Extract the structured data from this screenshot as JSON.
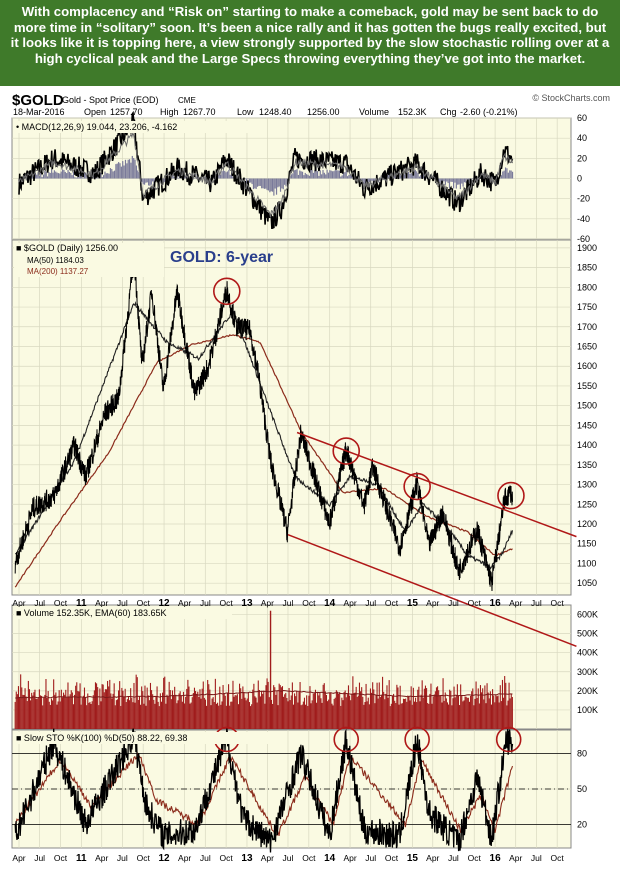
{
  "banner": {
    "text": "With complacency and “Risk on” starting to make a comeback, gold may be sent back to do more time in “solitary” soon. It’s been a nice rally and it has gotten the bugs really excited, but it looks like it is topping here, a view strongly supported by the slow stochastic rolling over at a high cyclical peak and the Large Specs throwing everything they’ve got into the market."
  },
  "header": {
    "symbol": "$GOLD",
    "description": "Gold - Spot Price (EOD)",
    "exchange": "CME",
    "watermark": "© StockCharts.com",
    "date": "18-Mar-2016",
    "open_label": "Open",
    "open": "1257.70",
    "high_label": "High",
    "high": "1267.70",
    "low_label": "Low",
    "low": "1248.40",
    "close": "1256.00",
    "volume_label": "Volume",
    "volume": "152.3K",
    "chg_label": "Chg",
    "chg": "-2.60 (-0.21%)"
  },
  "colors": {
    "panel_bg": "#fafae2",
    "banner_bg": "#3f7a2a",
    "price_line": "#000000",
    "ma_line": "#8b2b1b",
    "channel_line": "#b01818",
    "circle": "#b01818",
    "volume_bar": "#a01c1c",
    "macd_hist": "#7a7a9a"
  },
  "chart_data": [
    {
      "type": "line",
      "panel": "macd",
      "legend": "MACD(12,26,9) 19.044, 23.206, -4.162",
      "y_ticks": [
        60,
        40,
        20,
        0,
        -20,
        -40,
        -60
      ],
      "ylim": [
        -60,
        60
      ],
      "series": [
        {
          "name": "MACD",
          "x": [
            "2010-04-01",
            "2010-09-01",
            "2011-03-01",
            "2011-08-20",
            "2011-10-01",
            "2012-03-01",
            "2012-08-01",
            "2012-10-01",
            "2013-04-15",
            "2013-06-01",
            "2013-08-01",
            "2014-03-15",
            "2014-06-01",
            "2015-01-20",
            "2015-07-20",
            "2015-11-01",
            "2016-01-01",
            "2016-02-10",
            "2016-03-18"
          ],
          "values": [
            -5,
            20,
            5,
            55,
            -20,
            10,
            -5,
            20,
            -45,
            -30,
            20,
            15,
            -10,
            15,
            -25,
            5,
            -5,
            28,
            19.044
          ]
        }
      ]
    },
    {
      "type": "line",
      "panel": "price",
      "title": "GOLD: 6-year",
      "legend": [
        "$GOLD (Daily) 1256.00",
        "MA(50) 1184.03",
        "MA(200) 1137.27"
      ],
      "y_ticks": [
        1900,
        1850,
        1800,
        1750,
        1700,
        1650,
        1600,
        1550,
        1500,
        1450,
        1400,
        1350,
        1300,
        1250,
        1200,
        1150,
        1100,
        1050
      ],
      "ylim": [
        1020,
        1920
      ],
      "x_ticks": [
        "Apr",
        "Jul",
        "Oct",
        "11",
        "Apr",
        "Jul",
        "Oct",
        "12",
        "Apr",
        "Jul",
        "Oct",
        "13",
        "Apr",
        "Jul",
        "Oct",
        "14",
        "Apr",
        "Jul",
        "Oct",
        "15",
        "Apr",
        "Jul",
        "Oct",
        "16",
        "Apr",
        "Jul",
        "Oct"
      ],
      "series": [
        {
          "name": "$GOLD (Daily)",
          "x": [
            "2010-03-15",
            "2010-06-01",
            "2010-09-01",
            "2010-12-01",
            "2011-01-20",
            "2011-04-15",
            "2011-06-15",
            "2011-08-22",
            "2011-09-26",
            "2011-11-08",
            "2011-12-29",
            "2012-02-28",
            "2012-05-15",
            "2012-07-15",
            "2012-10-04",
            "2012-11-15",
            "2013-01-15",
            "2013-02-20",
            "2013-04-15",
            "2013-06-28",
            "2013-08-27",
            "2013-12-31",
            "2014-03-15",
            "2014-06-01",
            "2014-07-10",
            "2014-11-06",
            "2015-01-22",
            "2015-03-15",
            "2015-05-15",
            "2015-07-24",
            "2015-10-15",
            "2015-12-17",
            "2016-02-11",
            "2016-03-11",
            "2016-03-18"
          ],
          "values": [
            1100,
            1240,
            1270,
            1400,
            1320,
            1480,
            1520,
            1880,
            1600,
            1790,
            1540,
            1790,
            1530,
            1600,
            1795,
            1700,
            1690,
            1580,
            1360,
            1180,
            1430,
            1200,
            1390,
            1245,
            1345,
            1140,
            1305,
            1145,
            1230,
            1080,
            1185,
            1050,
            1260,
            1282,
            1256
          ]
        },
        {
          "name": "MA(50)",
          "x": [
            "2010-03-15",
            "2010-12-01",
            "2011-08-22",
            "2012-01-15",
            "2012-06-01",
            "2012-11-01",
            "2013-05-01",
            "2013-08-01",
            "2014-01-01",
            "2014-04-01",
            "2014-08-01",
            "2014-12-01",
            "2015-02-15",
            "2015-06-01",
            "2015-09-01",
            "2015-12-15",
            "2016-02-01",
            "2016-03-18"
          ],
          "values": [
            1120,
            1360,
            1760,
            1660,
            1620,
            1740,
            1460,
            1320,
            1250,
            1320,
            1300,
            1180,
            1250,
            1195,
            1120,
            1090,
            1125,
            1184.03
          ]
        },
        {
          "name": "MA(200)",
          "x": [
            "2010-03-15",
            "2010-10-01",
            "2011-05-01",
            "2011-12-01",
            "2012-05-01",
            "2012-11-01",
            "2013-03-01",
            "2013-09-01",
            "2014-03-01",
            "2014-09-01",
            "2015-03-01",
            "2015-09-01",
            "2016-01-01",
            "2016-03-18"
          ],
          "values": [
            1040,
            1210,
            1380,
            1610,
            1655,
            1680,
            1660,
            1430,
            1280,
            1290,
            1220,
            1180,
            1120,
            1137.27
          ]
        }
      ]
    },
    {
      "type": "bar",
      "panel": "volume",
      "legend": "Volume 152.35K, EMA(60) 183.65K",
      "y_ticks": [
        "600K",
        "500K",
        "400K",
        "300K",
        "200K",
        "100K"
      ],
      "ylim": [
        0,
        650
      ],
      "unit": "K",
      "series": [
        {
          "name": "Volume",
          "typical_range": [
            120,
            250
          ],
          "spike": {
            "x": "2013-04-15",
            "value": 620
          }
        },
        {
          "name": "EMA(60)",
          "x": [
            "2010-03-15",
            "2012-01-01",
            "2013-06-01",
            "2015-01-01",
            "2016-03-18"
          ],
          "values": [
            165,
            170,
            200,
            170,
            183.65
          ]
        }
      ]
    },
    {
      "type": "line",
      "panel": "stochastic",
      "legend": "Slow STO %K(100) %D(50) 88.22, 69.38",
      "y_ticks": [
        80,
        50,
        20
      ],
      "ylim": [
        0,
        100
      ],
      "x_ticks": [
        "Apr",
        "Jul",
        "Oct",
        "11",
        "Apr",
        "Jul",
        "Oct",
        "12",
        "Apr",
        "Jul",
        "Oct",
        "13",
        "Apr",
        "Jul",
        "Oct",
        "14",
        "Apr",
        "Jul",
        "Oct",
        "15",
        "Apr",
        "Jul",
        "Oct",
        "16",
        "Apr",
        "Jul",
        "Oct"
      ],
      "series": [
        {
          "name": "%K(100)",
          "x": [
            "2010-03-15",
            "2010-09-01",
            "2011-01-20",
            "2011-08-22",
            "2011-10-15",
            "2012-01-01",
            "2012-05-15",
            "2012-10-04",
            "2012-12-15",
            "2013-04-15",
            "2013-08-27",
            "2013-12-31",
            "2014-03-15",
            "2014-06-01",
            "2014-11-06",
            "2015-01-22",
            "2015-03-15",
            "2015-07-24",
            "2015-10-15",
            "2015-12-17",
            "2016-02-20",
            "2016-03-18"
          ],
          "values": [
            10,
            90,
            20,
            95,
            35,
            10,
            15,
            92,
            25,
            5,
            80,
            10,
            92,
            15,
            10,
            92,
            30,
            5,
            60,
            8,
            92,
            88.22
          ]
        },
        {
          "name": "%D(50)",
          "x": [
            "2010-03-15",
            "2010-10-01",
            "2011-02-15",
            "2011-09-10",
            "2011-12-01",
            "2012-06-01",
            "2012-10-20",
            "2013-05-15",
            "2013-09-15",
            "2014-01-15",
            "2014-04-01",
            "2014-12-01",
            "2015-02-10",
            "2015-08-01",
            "2015-11-01",
            "2016-01-01",
            "2016-03-18"
          ],
          "values": [
            20,
            75,
            35,
            80,
            40,
            20,
            78,
            10,
            60,
            20,
            78,
            20,
            75,
            15,
            45,
            15,
            69.38
          ]
        }
      ]
    }
  ]
}
